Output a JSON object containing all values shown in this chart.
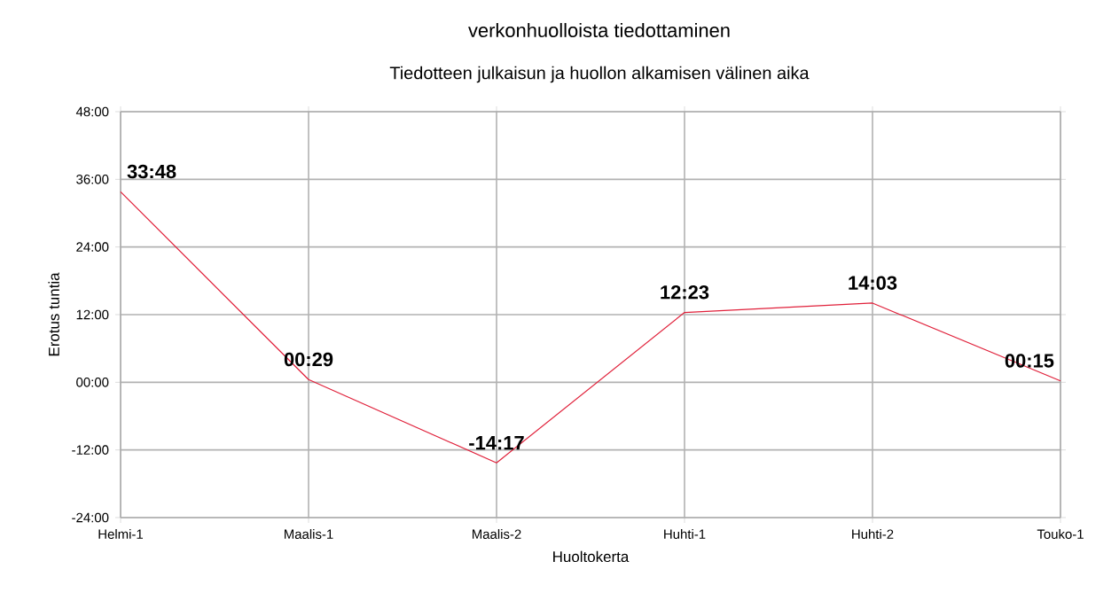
{
  "chart_data": {
    "type": "line",
    "title": "verkonhuolloista tiedottaminen",
    "subtitle": "Tiedotteen julkaisun ja huollon alkamisen välinen aika",
    "xlabel": "Huoltokerta",
    "ylabel": "Erotus tuntia",
    "categories": [
      "Helmi-1",
      "Maalis-1",
      "Maalis-2",
      "Huhti-1",
      "Huhti-2",
      "Touko-1"
    ],
    "series": [
      {
        "color": "#e0203a",
        "values": [
          33.8,
          0.4833,
          -14.2833,
          12.3833,
          14.05,
          0.25
        ],
        "value_labels": [
          "33:48",
          "00:29",
          "-14:17",
          "12:23",
          "14:03",
          "00:15"
        ]
      }
    ],
    "ylim": [
      -24,
      48
    ],
    "yticks": [
      {
        "value": -24,
        "label": "-24:00"
      },
      {
        "value": -12,
        "label": "-12:00"
      },
      {
        "value": 0,
        "label": "00:00"
      },
      {
        "value": 12,
        "label": "12:00"
      },
      {
        "value": 24,
        "label": "24:00"
      },
      {
        "value": 36,
        "label": "36:00"
      },
      {
        "value": 48,
        "label": "48:00"
      }
    ],
    "grid": true,
    "marker": "none",
    "line_style": "solid"
  }
}
